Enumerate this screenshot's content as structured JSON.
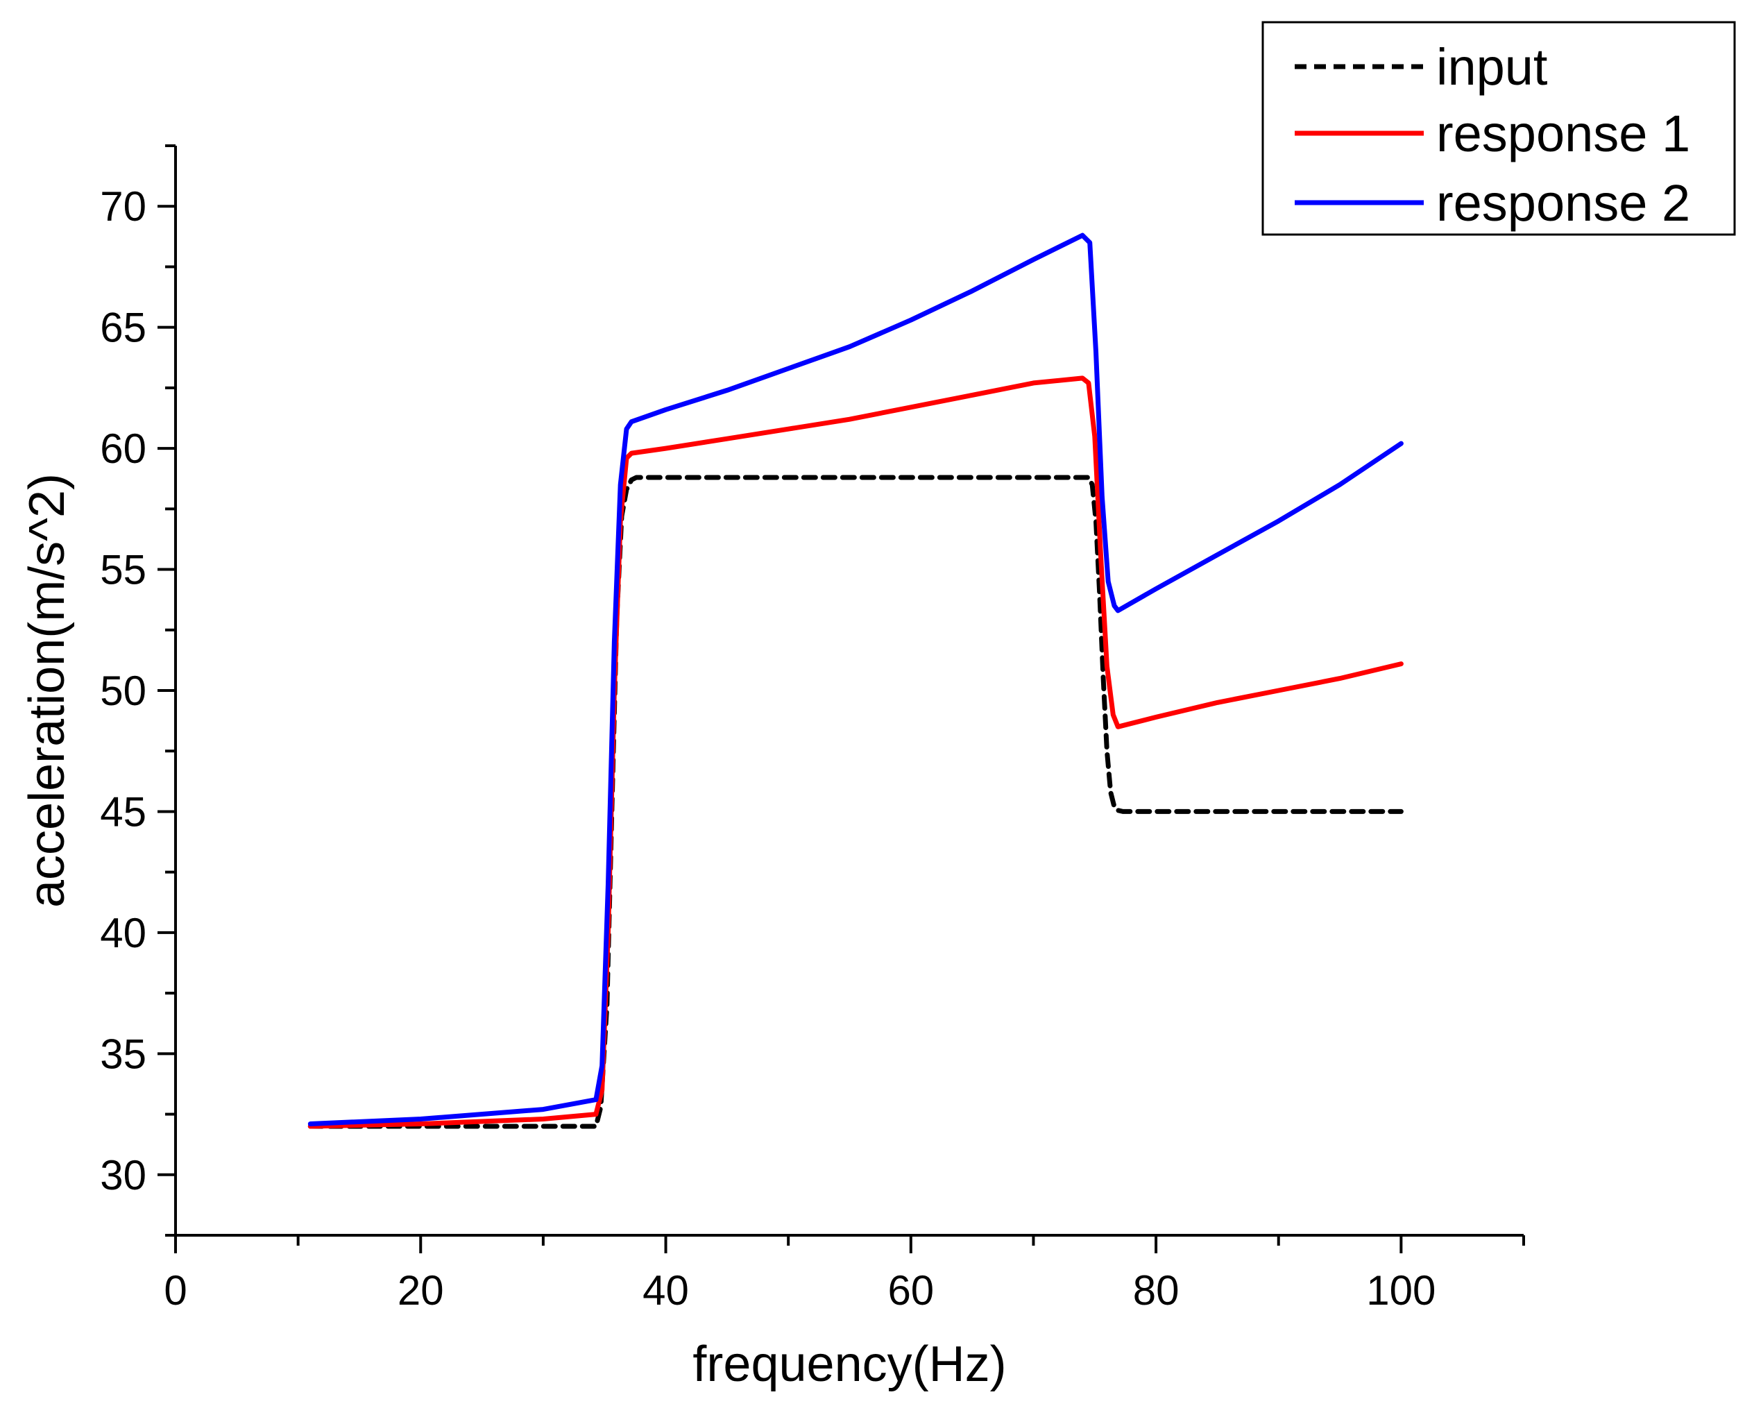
{
  "chart_data": {
    "type": "line",
    "xlabel": "frequency(Hz)",
    "ylabel": "acceleration(m/s^2)",
    "xlim": [
      0,
      110
    ],
    "ylim": [
      27.5,
      72.5
    ],
    "x_ticks": [
      0,
      20,
      40,
      60,
      80,
      100
    ],
    "x_minor_step": 10,
    "y_ticks": [
      30,
      35,
      40,
      45,
      50,
      55,
      60,
      65,
      70
    ],
    "y_minor_step": 2.5,
    "legend_position": "top-right",
    "colors": {
      "input": "#000000",
      "response1": "#ff0000",
      "response2": "#0000ff"
    },
    "series": [
      {
        "name": "input",
        "style": "dashed",
        "color": "#000000",
        "x": [
          11,
          20,
          30,
          34.3,
          34.7,
          35.2,
          35.6,
          36.0,
          36.4,
          36.8,
          37.2,
          37.6,
          38,
          50,
          60,
          70,
          74.5,
          74.8,
          75.1,
          75.4,
          75.7,
          76.0,
          76.3,
          76.6,
          76.9,
          77.3,
          80,
          90,
          100
        ],
        "y": [
          32,
          32,
          32,
          32,
          32.8,
          37,
          45,
          53,
          57.2,
          58.3,
          58.7,
          58.8,
          58.8,
          58.8,
          58.8,
          58.8,
          58.8,
          58.5,
          57,
          54,
          50.5,
          47.5,
          45.8,
          45.2,
          45.05,
          45,
          45,
          45,
          45
        ]
      },
      {
        "name": "response 1",
        "style": "solid",
        "color": "#ff0000",
        "x": [
          11,
          20,
          30,
          34.3,
          34.8,
          35.3,
          35.8,
          36.3,
          36.8,
          37.2,
          40,
          45,
          50,
          55,
          60,
          65,
          70,
          74.0,
          74.5,
          75.0,
          75.5,
          76.0,
          76.5,
          76.9,
          80,
          85,
          90,
          95,
          100
        ],
        "y": [
          32.0,
          32.1,
          32.3,
          32.5,
          33.5,
          40,
          50,
          57,
          59.6,
          59.8,
          60.0,
          60.4,
          60.8,
          61.2,
          61.7,
          62.2,
          62.7,
          62.9,
          62.7,
          60.5,
          55.5,
          51,
          49,
          48.5,
          48.9,
          49.5,
          50.0,
          50.5,
          51.1
        ]
      },
      {
        "name": "response 2",
        "style": "solid",
        "color": "#0000ff",
        "x": [
          11,
          20,
          30,
          34.3,
          34.8,
          35.3,
          35.8,
          36.3,
          36.8,
          37.2,
          40,
          45,
          50,
          55,
          60,
          65,
          70,
          74.0,
          74.6,
          75.1,
          75.6,
          76.1,
          76.6,
          76.9,
          80,
          85,
          90,
          95,
          100
        ],
        "y": [
          32.1,
          32.3,
          32.7,
          33.1,
          34.5,
          42,
          52,
          58.5,
          60.8,
          61.1,
          61.6,
          62.4,
          63.3,
          64.2,
          65.3,
          66.5,
          67.8,
          68.8,
          68.5,
          64,
          58,
          54.5,
          53.5,
          53.3,
          54.2,
          55.6,
          57.0,
          58.5,
          60.2
        ]
      }
    ]
  }
}
